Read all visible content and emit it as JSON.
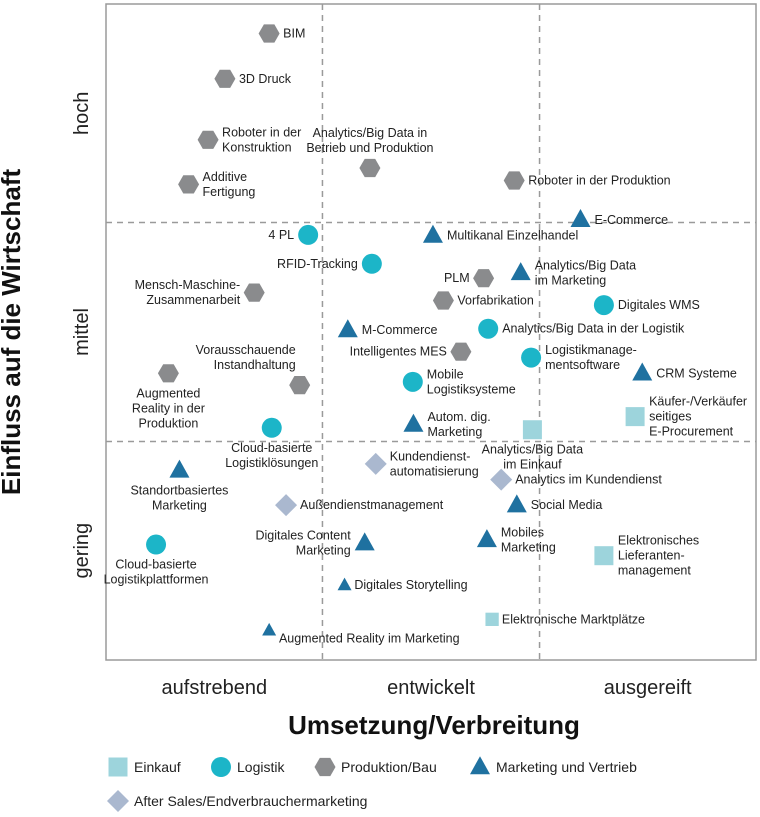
{
  "chart_data": {
    "type": "scatter",
    "title": "",
    "xlabel": "Umsetzung/Verbreitung",
    "ylabel": "Einfluss auf die Wirtschaft",
    "xlim": [
      0,
      100
    ],
    "ylim": [
      0,
      100
    ],
    "x_ticks": [
      "aufstrebend",
      "entwickelt",
      "ausgereift"
    ],
    "y_ticks": [
      "gering",
      "mittel",
      "hoch"
    ],
    "x_dividers": [
      33.3,
      66.7
    ],
    "y_dividers": [
      33.3,
      66.7
    ],
    "colors": {
      "Einkauf": "#9dd4dc",
      "Logistik": "#1cb5c8",
      "Produktion/Bau": "#8a8b8d",
      "Marketing und Vertrieb": "#1f71a0",
      "After Sales/Endverbraucher­marketing": "#aab8cf"
    },
    "legend": [
      {
        "name": "Einkauf",
        "shape": "square"
      },
      {
        "name": "Logistik",
        "shape": "circle"
      },
      {
        "name": "Produktion/Bau",
        "shape": "hexagon"
      },
      {
        "name": "Marketing und Vertrieb",
        "shape": "triangle"
      },
      {
        "name": "After Sales/Endverbrauchermarketing",
        "shape": "diamond"
      }
    ],
    "points": [
      {
        "label": [
          "BIM"
        ],
        "cat": "Produktion/Bau",
        "shape": "hexagon",
        "x": 25.1,
        "y": 95.5,
        "size": 1,
        "anchor": "right"
      },
      {
        "label": [
          "3D Druck"
        ],
        "cat": "Produktion/Bau",
        "shape": "hexagon",
        "x": 18.3,
        "y": 88.6,
        "size": 1,
        "anchor": "right"
      },
      {
        "label": [
          "Roboter in der",
          "Konstruktion"
        ],
        "cat": "Produktion/Bau",
        "shape": "hexagon",
        "x": 15.7,
        "y": 79.3,
        "size": 1,
        "anchor": "right"
      },
      {
        "label": [
          "Additive",
          "Fertigung"
        ],
        "cat": "Produktion/Bau",
        "shape": "hexagon",
        "x": 12.7,
        "y": 72.5,
        "size": 1,
        "anchor": "right"
      },
      {
        "label": [
          "Analytics/Big Data in",
          "Betrieb und Produktion"
        ],
        "cat": "Produktion/Bau",
        "shape": "hexagon",
        "x": 40.6,
        "y": 75.0,
        "size": 1,
        "anchor": "above"
      },
      {
        "label": [
          "Roboter in der Produktion"
        ],
        "cat": "Produktion/Bau",
        "shape": "hexagon",
        "x": 62.8,
        "y": 73.1,
        "size": 1,
        "anchor": "right"
      },
      {
        "label": [
          "E-Commerce"
        ],
        "cat": "Marketing und Vertrieb",
        "shape": "triangle",
        "x": 73.0,
        "y": 67.1,
        "size": 1,
        "anchor": "right"
      },
      {
        "label": [
          "4 PL"
        ],
        "cat": "Logistik",
        "shape": "circle",
        "x": 31.1,
        "y": 64.8,
        "size": 1,
        "anchor": "left"
      },
      {
        "label": [
          "Multikanal Einzelhandel"
        ],
        "cat": "Marketing und Vertrieb",
        "shape": "triangle",
        "x": 50.3,
        "y": 64.7,
        "size": 1,
        "anchor": "right"
      },
      {
        "label": [
          "Analytics/Big Data",
          "im Marketing"
        ],
        "cat": "Marketing und Vertrieb",
        "shape": "triangle",
        "x": 63.8,
        "y": 59.0,
        "size": 1,
        "anchor": "right"
      },
      {
        "label": [
          "RFID-Tracking"
        ],
        "cat": "Logistik",
        "shape": "circle",
        "x": 40.9,
        "y": 60.4,
        "size": 1,
        "anchor": "left"
      },
      {
        "label": [
          "PLM"
        ],
        "cat": "Produktion/Bau",
        "shape": "hexagon",
        "x": 58.1,
        "y": 58.2,
        "size": 1,
        "anchor": "left"
      },
      {
        "label": [
          "Mensch-Maschine-",
          "Zusammenarbeit"
        ],
        "cat": "Produktion/Bau",
        "shape": "hexagon",
        "x": 22.8,
        "y": 56.0,
        "size": 1,
        "anchor": "left"
      },
      {
        "label": [
          "Vorfabrikation"
        ],
        "cat": "Produktion/Bau",
        "shape": "hexagon",
        "x": 51.9,
        "y": 54.8,
        "size": 1,
        "anchor": "right"
      },
      {
        "label": [
          "Digitales WMS"
        ],
        "cat": "Logistik",
        "shape": "circle",
        "x": 76.6,
        "y": 54.1,
        "size": 1,
        "anchor": "right"
      },
      {
        "label": [
          "M-Commerce"
        ],
        "cat": "Marketing und Vertrieb",
        "shape": "triangle",
        "x": 37.2,
        "y": 50.3,
        "size": 1,
        "anchor": "right"
      },
      {
        "label": [
          "Analytics/Big Data in der Logistik"
        ],
        "cat": "Logistik",
        "shape": "circle",
        "x": 58.8,
        "y": 50.5,
        "size": 1,
        "anchor": "right"
      },
      {
        "label": [
          "Intelligentes MES"
        ],
        "cat": "Produktion/Bau",
        "shape": "hexagon",
        "x": 54.6,
        "y": 47.0,
        "size": 1,
        "anchor": "left"
      },
      {
        "label": [
          "Logistikmanage-",
          "mentsoftware"
        ],
        "cat": "Logistik",
        "shape": "circle",
        "x": 65.4,
        "y": 46.1,
        "size": 1,
        "anchor": "right"
      },
      {
        "label": [
          "Augmented",
          "Reality in der",
          "Produktion"
        ],
        "cat": "Produktion/Bau",
        "shape": "hexagon",
        "x": 9.6,
        "y": 43.7,
        "size": 1,
        "anchor": "below"
      },
      {
        "label": [
          "Vorausschauende",
          "Instandhaltung"
        ],
        "cat": "Produktion/Bau",
        "shape": "hexagon",
        "x": 29.8,
        "y": 41.9,
        "size": 1,
        "anchor": "above-left"
      },
      {
        "label": [
          "CRM Systeme"
        ],
        "cat": "Marketing und Vertrieb",
        "shape": "triangle",
        "x": 82.5,
        "y": 43.7,
        "size": 1,
        "anchor": "right"
      },
      {
        "label": [
          "Mobile",
          "Logistiksysteme"
        ],
        "cat": "Logistik",
        "shape": "circle",
        "x": 47.2,
        "y": 42.4,
        "size": 1,
        "anchor": "right"
      },
      {
        "label": [
          "Käufer-/Verkäufer",
          "seitiges",
          "E-Procurement"
        ],
        "cat": "Einkauf",
        "shape": "square",
        "x": 81.4,
        "y": 37.1,
        "size": 1,
        "anchor": "right"
      },
      {
        "label": [
          "Cloud-basierte",
          "Logistiklösungen"
        ],
        "cat": "Logistik",
        "shape": "circle",
        "x": 25.5,
        "y": 35.4,
        "size": 1,
        "anchor": "below"
      },
      {
        "label": [
          "Autom. dig.",
          "Marketing"
        ],
        "cat": "Marketing und Vertrieb",
        "shape": "triangle",
        "x": 47.3,
        "y": 35.9,
        "size": 1,
        "anchor": "right"
      },
      {
        "label": [
          "Analytics/Big Data",
          "im Einkauf"
        ],
        "cat": "Einkauf",
        "shape": "square",
        "x": 65.6,
        "y": 35.1,
        "size": 1,
        "anchor": "below"
      },
      {
        "label": [
          "Kundendienst-",
          "automatisierung"
        ],
        "cat": "After Sales/Endverbrauchermarketing",
        "shape": "diamond",
        "x": 41.5,
        "y": 29.9,
        "size": 1,
        "anchor": "right"
      },
      {
        "label": [
          "Standortbasiertes",
          "Marketing"
        ],
        "cat": "Marketing und Vertrieb",
        "shape": "triangle",
        "x": 11.3,
        "y": 28.9,
        "size": 1,
        "anchor": "below"
      },
      {
        "label": [
          "Analytics im Kundendienst"
        ],
        "cat": "After Sales/Endverbrauchermarketing",
        "shape": "diamond",
        "x": 60.8,
        "y": 27.5,
        "size": 1,
        "anchor": "right"
      },
      {
        "label": [
          "Außendienstmanagement"
        ],
        "cat": "After Sales/Endverbrauchermarketing",
        "shape": "diamond",
        "x": 27.7,
        "y": 23.6,
        "size": 1,
        "anchor": "right"
      },
      {
        "label": [
          "Social Media"
        ],
        "cat": "Marketing und Vertrieb",
        "shape": "triangle",
        "x": 63.2,
        "y": 23.6,
        "size": 1,
        "anchor": "right"
      },
      {
        "label": [
          "Digitales Content",
          "Marketing"
        ],
        "cat": "Marketing und Vertrieb",
        "shape": "triangle",
        "x": 39.8,
        "y": 17.8,
        "size": 1,
        "anchor": "left"
      },
      {
        "label": [
          "Mobiles",
          "Marketing"
        ],
        "cat": "Marketing und Vertrieb",
        "shape": "triangle",
        "x": 58.6,
        "y": 18.3,
        "size": 1,
        "anchor": "right"
      },
      {
        "label": [
          "Cloud-basierte",
          "Logistikplattformen"
        ],
        "cat": "Logistik",
        "shape": "circle",
        "x": 7.7,
        "y": 17.6,
        "size": 1,
        "anchor": "below"
      },
      {
        "label": [
          "Elektronisches",
          "Lieferanten-",
          "management"
        ],
        "cat": "Einkauf",
        "shape": "square",
        "x": 76.6,
        "y": 15.9,
        "size": 1,
        "anchor": "right"
      },
      {
        "label": [
          "Digitales Storytelling"
        ],
        "cat": "Marketing und Vertrieb",
        "shape": "triangle",
        "x": 36.7,
        "y": 11.4,
        "size": 0.7,
        "anchor": "right"
      },
      {
        "label": [
          "Elektronische Marktplätze"
        ],
        "cat": "Einkauf",
        "shape": "square",
        "x": 59.4,
        "y": 6.2,
        "size": 0.7,
        "anchor": "right"
      },
      {
        "label": [
          "Augmented Reality im Marketing"
        ],
        "cat": "Marketing und Vertrieb",
        "shape": "triangle",
        "x": 25.1,
        "y": 4.5,
        "size": 0.7,
        "anchor": "right-below"
      }
    ]
  }
}
